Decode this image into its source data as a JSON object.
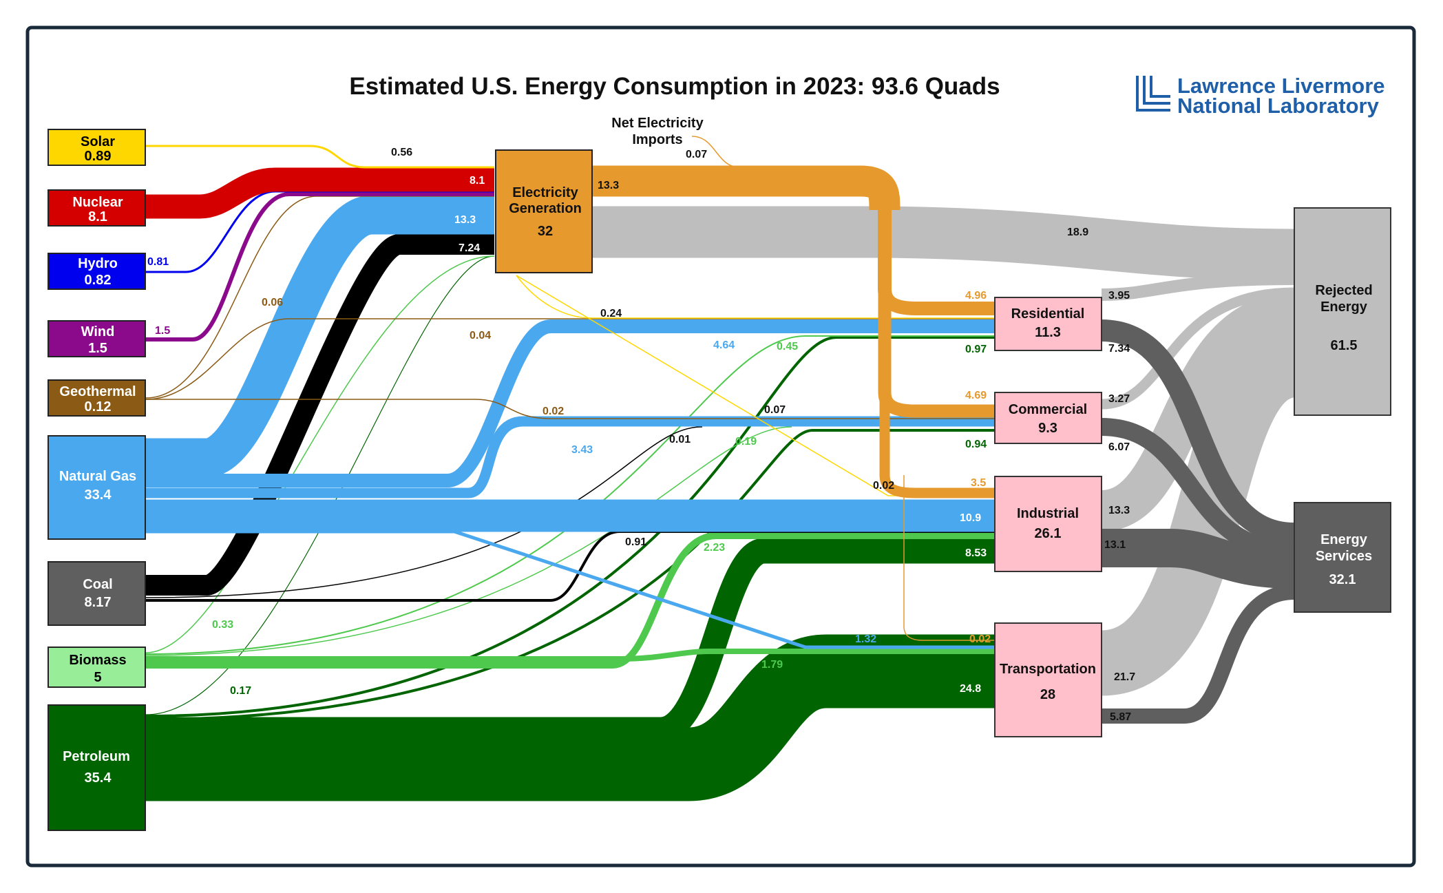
{
  "title": "Estimated U.S. Energy Consumption in 2023: 93.6 Quads",
  "logo": {
    "line1": "Lawrence Livermore",
    "line2": "National Laboratory"
  },
  "imports_label": {
    "line1": "Net Electricity",
    "line2": "Imports"
  },
  "colors": {
    "solar": "#ffd700",
    "nuclear": "#d40000",
    "hydro": "#0000ee",
    "wind": "#8b0a8b",
    "geothermal": "#8b5a14",
    "natural_gas": "#4aa8ef",
    "coal": "#000000",
    "biomass": "#4ec94e",
    "petroleum": "#006400",
    "electricity": "#e69a2e",
    "sector": "#ffc0cb",
    "rejected": "#bebebe",
    "services": "#5f5f5f",
    "frame": "#1a2a3a"
  },
  "sources": [
    {
      "name": "Solar",
      "value": "0.89"
    },
    {
      "name": "Nuclear",
      "value": "8.1"
    },
    {
      "name": "Hydro",
      "value": "0.82"
    },
    {
      "name": "Wind",
      "value": "1.5"
    },
    {
      "name": "Geothermal",
      "value": "0.12"
    },
    {
      "name": "Natural Gas",
      "value": "33.4"
    },
    {
      "name": "Coal",
      "value": "8.17"
    },
    {
      "name": "Biomass",
      "value": "5"
    },
    {
      "name": "Petroleum",
      "value": "35.4"
    }
  ],
  "electricity": {
    "line1": "Electricity",
    "line2": "Generation",
    "value": "32"
  },
  "sectors": [
    {
      "name": "Residential",
      "value": "11.3"
    },
    {
      "name": "Commercial",
      "value": "9.3"
    },
    {
      "name": "Industrial",
      "value": "26.1"
    },
    {
      "name": "Transportation",
      "value": "28"
    }
  ],
  "rejected": {
    "line1": "Rejected",
    "line2": "Energy",
    "value": "61.5"
  },
  "services": {
    "line1": "Energy",
    "line2": "Services",
    "value": "32.1"
  },
  "flow_labels": {
    "solar_elec": "0.56",
    "nuclear_elec": "8.1",
    "hydro": "0.81",
    "wind": "1.5",
    "geo_elec": "0.06",
    "gas_elec": "13.3",
    "coal_elec": "7.24",
    "imports": "0.07",
    "elec_out": "13.3",
    "elec_rejected": "18.9",
    "solar_res": "0.24",
    "geo_res": "0.04",
    "gas_res": "4.64",
    "bio_res": "0.45",
    "pet_res": "0.97",
    "elec_res": "4.96",
    "res_rej": "3.95",
    "res_serv": "7.34",
    "geo_com": "0.02",
    "coal_com": "0.01",
    "solar_com": "0.07",
    "gas_com": "3.43",
    "bio_com": "0.19",
    "pet_com": "0.94",
    "elec_com": "4.69",
    "com_rej": "3.27",
    "com_serv": "6.07",
    "solar_ind": "0.02",
    "elec_ind": "3.5",
    "gas_ind": "10.9",
    "coal_ind": "0.91",
    "bio_ind": "2.23",
    "pet_ind": "8.53",
    "ind_rej": "13.3",
    "ind_serv": "13.1",
    "bio_elec": "0.33",
    "pet_elec": "0.17",
    "elec_trans": "0.02",
    "gas_trans": "1.32",
    "bio_trans": "1.79",
    "pet_trans": "24.8",
    "trans_rej": "21.7",
    "trans_serv": "5.87"
  }
}
